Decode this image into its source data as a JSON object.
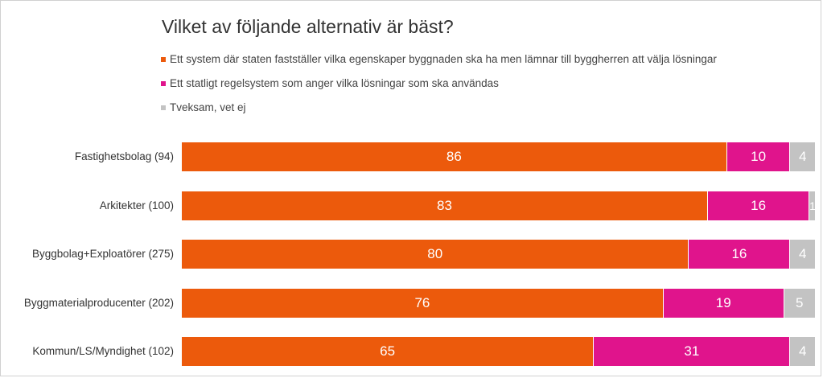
{
  "chart_data": {
    "type": "bar",
    "orientation": "horizontal",
    "stacked": true,
    "title": "Vilket av följande alternativ är bäst?",
    "categories": [
      "Fastighetsbolag (94)",
      "Arkitekter (100)",
      "Byggbolag+Exploatörer (275)",
      "Byggmaterialproducenter (202)",
      "Kommun/LS/Myndighet (102)"
    ],
    "series": [
      {
        "name": "Ett system där staten fastställer vilka egenskaper byggnaden ska ha men lämnar till byggherren att välja lösningar",
        "color": "#ec5a0c",
        "values": [
          86,
          83,
          80,
          76,
          65
        ]
      },
      {
        "name": "Ett statligt regelsystem som anger vilka lösningar som ska användas",
        "color": "#e0148c",
        "values": [
          10,
          16,
          16,
          19,
          31
        ]
      },
      {
        "name": "Tveksam, vet ej",
        "color": "#c3c3c3",
        "values": [
          4,
          1,
          4,
          5,
          4
        ]
      }
    ],
    "xlim": [
      0,
      100
    ],
    "grid": false,
    "legend_position": "top-left"
  }
}
